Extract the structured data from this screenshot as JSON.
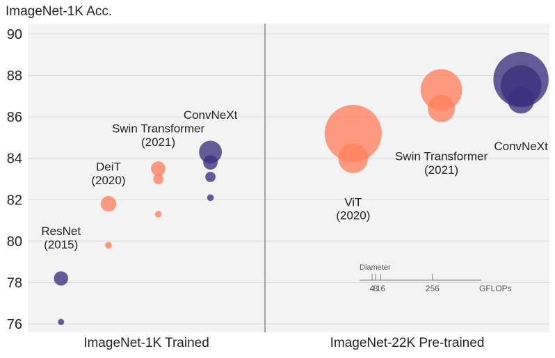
{
  "chart_data": {
    "type": "scatter",
    "title": "ImageNet-1K Acc.",
    "ylabel": "ImageNet-1K Acc.",
    "ylim": [
      75.6,
      90.5
    ],
    "yticks": [
      76,
      78,
      80,
      82,
      84,
      86,
      88,
      90
    ],
    "grid": true,
    "background_color": "#f3f3f3",
    "panels": [
      {
        "label": "ImageNet-1K Trained",
        "x_range": [
          0,
          1
        ]
      },
      {
        "label": "ImageNet-22K Pre-trained",
        "x_range": [
          1,
          2
        ]
      }
    ],
    "colors": {
      "convnext": "#3a2f7d",
      "transformer": "#ff7f5c",
      "divider": "#888888",
      "grid": "#d9d9d9"
    },
    "series": [
      {
        "group": "convnext",
        "panel": 0,
        "x": 0.14,
        "points": [
          {
            "y": 76.1,
            "gflops": 4
          },
          {
            "y": 78.2,
            "gflops": 15
          }
        ]
      },
      {
        "group": "transformer",
        "panel": 0,
        "x": 0.34,
        "points": [
          {
            "y": 79.8,
            "gflops": 4.6
          },
          {
            "y": 81.8,
            "gflops": 17.6
          }
        ]
      },
      {
        "group": "transformer",
        "panel": 0,
        "x": 0.55,
        "points": [
          {
            "y": 81.3,
            "gflops": 4.5
          },
          {
            "y": 83.0,
            "gflops": 8.7
          },
          {
            "y": 83.5,
            "gflops": 15.4
          }
        ]
      },
      {
        "group": "convnext",
        "panel": 0,
        "x": 0.77,
        "points": [
          {
            "y": 82.1,
            "gflops": 4.5
          },
          {
            "y": 83.1,
            "gflops": 8.7
          },
          {
            "y": 83.8,
            "gflops": 15.4
          },
          {
            "y": 84.3,
            "gflops": 34.4
          }
        ]
      },
      {
        "group": "transformer",
        "panel": 1,
        "x": 0.31,
        "points": [
          {
            "y": 84.0,
            "gflops": 55.4
          },
          {
            "y": 85.2,
            "gflops": 190.7
          }
        ]
      },
      {
        "group": "transformer",
        "panel": 1,
        "x": 0.62,
        "points": [
          {
            "y": 86.4,
            "gflops": 47
          },
          {
            "y": 87.3,
            "gflops": 103.9
          }
        ]
      },
      {
        "group": "convnext",
        "panel": 1,
        "x": 0.9,
        "points": [
          {
            "y": 86.8,
            "gflops": 45
          },
          {
            "y": 87.5,
            "gflops": 101
          },
          {
            "y": 87.8,
            "gflops": 179
          }
        ]
      }
    ],
    "annotations": [
      {
        "text": "ResNet",
        "panel": 0,
        "x": 0.14,
        "y": 80.5
      },
      {
        "text": "(2015)",
        "panel": 0,
        "x": 0.14,
        "y": 79.85
      },
      {
        "text": "DeiT",
        "panel": 0,
        "x": 0.34,
        "y": 83.6
      },
      {
        "text": "(2020)",
        "panel": 0,
        "x": 0.34,
        "y": 82.95
      },
      {
        "text": "Swin Transformer",
        "panel": 0,
        "x": 0.55,
        "y": 85.45
      },
      {
        "text": "(2021)",
        "panel": 0,
        "x": 0.55,
        "y": 84.8
      },
      {
        "text": "ConvNeXt",
        "panel": 0,
        "x": 0.77,
        "y": 86.1
      },
      {
        "text": "ViT",
        "panel": 1,
        "x": 0.31,
        "y": 81.9
      },
      {
        "text": "(2020)",
        "panel": 1,
        "x": 0.31,
        "y": 81.25
      },
      {
        "text": "Swin Transformer",
        "panel": 1,
        "x": 0.62,
        "y": 84.1
      },
      {
        "text": "(2021)",
        "panel": 1,
        "x": 0.62,
        "y": 83.45
      },
      {
        "text": "ConvNeXt",
        "panel": 1,
        "x": 0.9,
        "y": 84.6
      }
    ],
    "size_legend": {
      "title": "Diameter",
      "unit": "GFLOPs",
      "ticks": [
        {
          "label": "4",
          "value": 4
        },
        {
          "label": "8",
          "value": 8
        },
        {
          "label": "16",
          "value": 16
        },
        {
          "label": "256",
          "value": 256
        }
      ]
    }
  }
}
